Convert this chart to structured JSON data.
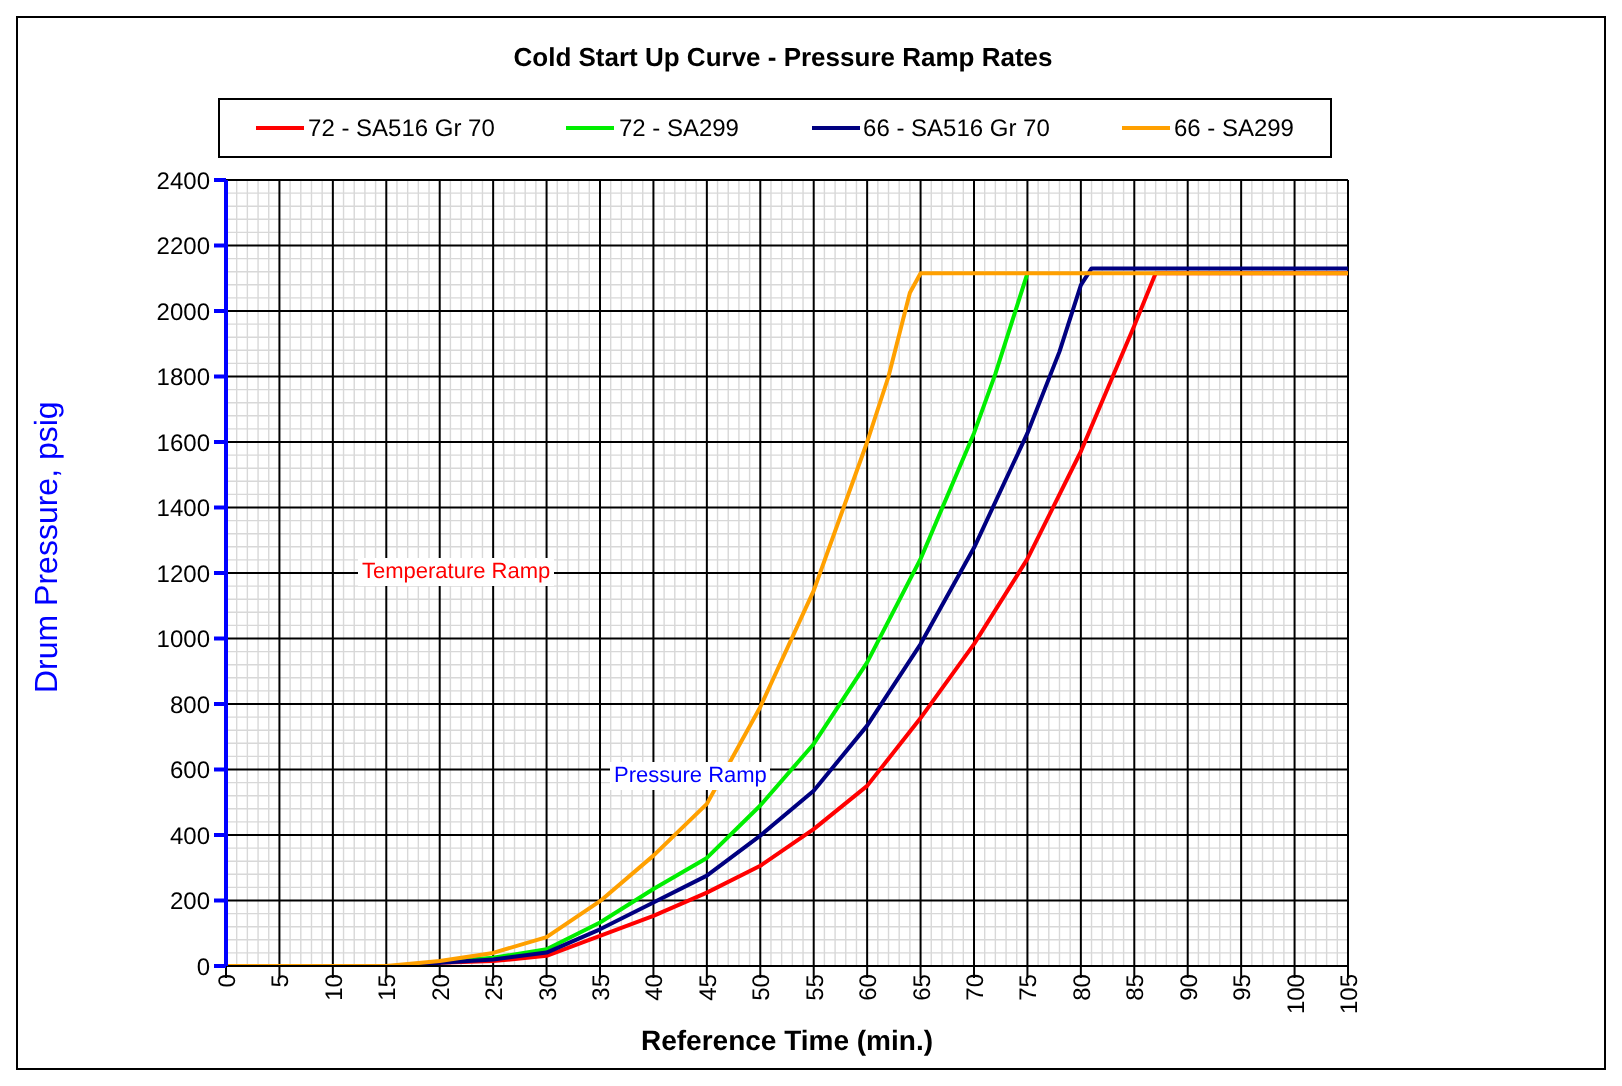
{
  "chart_data": {
    "type": "line",
    "title": "Cold Start Up Curve - Pressure Ramp Rates",
    "xlabel": "Reference Time (min.)",
    "ylabel": "Drum Pressure, psig",
    "xlim": [
      0,
      105
    ],
    "xticks": [
      0,
      5,
      10,
      15,
      20,
      25,
      30,
      35,
      40,
      45,
      50,
      55,
      60,
      65,
      70,
      75,
      80,
      85,
      90,
      95,
      100,
      105
    ],
    "ylim": [
      0,
      2400
    ],
    "yticks": [
      0,
      200,
      400,
      600,
      800,
      1000,
      1200,
      1400,
      1600,
      1800,
      2000,
      2200,
      2400
    ],
    "grid": true,
    "legend": "top",
    "marker": "none",
    "line_style": "solid",
    "annotations": [
      "Temperature Ramp",
      "Pressure Ramp"
    ],
    "series": [
      {
        "name": "72 - SA516 Gr 70",
        "color": "#ff0000",
        "x": [
          0,
          17,
          20,
          25,
          30,
          35,
          40,
          45,
          50,
          55,
          60,
          65,
          70,
          75,
          80,
          85,
          87,
          105
        ],
        "values": [
          0,
          0,
          10,
          15,
          31,
          92,
          153,
          224,
          306,
          418,
          550,
          757,
          983,
          1243,
          1571,
          1955,
          2115,
          2115
        ]
      },
      {
        "name": "72 - SA299",
        "color": "#00ee00",
        "x": [
          20,
          25,
          30,
          35,
          40,
          45,
          50,
          55,
          60,
          65,
          70,
          72,
          75
        ],
        "values": [
          12,
          25,
          51,
          133,
          235,
          330,
          490,
          678,
          927,
          1243,
          1627,
          1808,
          2115
        ]
      },
      {
        "name": "66 - SA516 Gr 70",
        "color": "#000080",
        "x": [
          0,
          17,
          20,
          25,
          30,
          35,
          40,
          45,
          50,
          55,
          60,
          65,
          70,
          75,
          78,
          80,
          81,
          105
        ],
        "values": [
          0,
          0,
          10,
          20,
          41,
          112,
          194,
          276,
          398,
          535,
          734,
          983,
          1277,
          1627,
          1876,
          2079,
          2130,
          2130
        ]
      },
      {
        "name": "66 - SA299",
        "color": "#ffa000",
        "x": [
          0,
          15,
          20,
          25,
          30,
          35,
          40,
          45,
          50,
          55,
          60,
          62,
          64,
          65,
          105
        ],
        "values": [
          0,
          0,
          15,
          40,
          88,
          198,
          337,
          495,
          791,
          1146,
          1600,
          1800,
          2056,
          2115,
          2115
        ]
      }
    ]
  }
}
